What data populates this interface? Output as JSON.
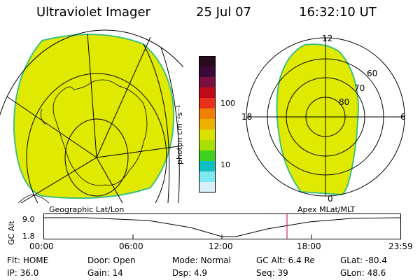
{
  "header": {
    "title": "Ultraviolet Imager",
    "date": "25 Jul 07",
    "time": "16:32:10 UT"
  },
  "colorbar": {
    "unit_label": "photon cm⁻²s⁻¹",
    "tick_labels": [
      "100",
      "10"
    ],
    "colors": [
      "#2a0a1e",
      "#3a0a3a",
      "#7a1040",
      "#c00a1a",
      "#e8301a",
      "#f08000",
      "#f0b000",
      "#d8e000",
      "#a8e000",
      "#40d020",
      "#10c0c0",
      "#80e8f0",
      "#d8f0f8"
    ]
  },
  "polar_plot": {
    "mlt_labels": {
      "top": "12",
      "left": "18",
      "right": "6",
      "bottom": "0"
    },
    "lat_labels": [
      "60",
      "70",
      "80"
    ]
  },
  "labels": {
    "geo": "Geographic Lat/Lon",
    "apex": "Apex  MLat/MLT",
    "gc_alt_axis": "GC Alt",
    "ytick_top": "9.0",
    "ytick_bottom": "1.8"
  },
  "time_axis": {
    "ticks": [
      "00:00",
      "06:00",
      "12:00",
      "18:00",
      "23:59"
    ]
  },
  "info_rows": [
    [
      {
        "label": "Flt:",
        "value": "HOME"
      },
      {
        "label": "Door:",
        "value": "Open"
      },
      {
        "label": "Mode:",
        "value": "Normal"
      },
      {
        "label": "GC Alt:",
        "value": "6.4 Re"
      },
      {
        "label": "GLat:",
        "value": "-80.4"
      }
    ],
    [
      {
        "label": "IP:",
        "value": "36.0"
      },
      {
        "label": "Gain:",
        "value": "14"
      },
      {
        "label": "Dsp:",
        "value": "4.9"
      },
      {
        "label": "Seq:",
        "value": "39"
      },
      {
        "label": "GLon:",
        "value": "48.6"
      }
    ]
  ],
  "colors": {
    "fill": "#e0ea00",
    "edge": "#40c080",
    "marker": "#c00040"
  }
}
